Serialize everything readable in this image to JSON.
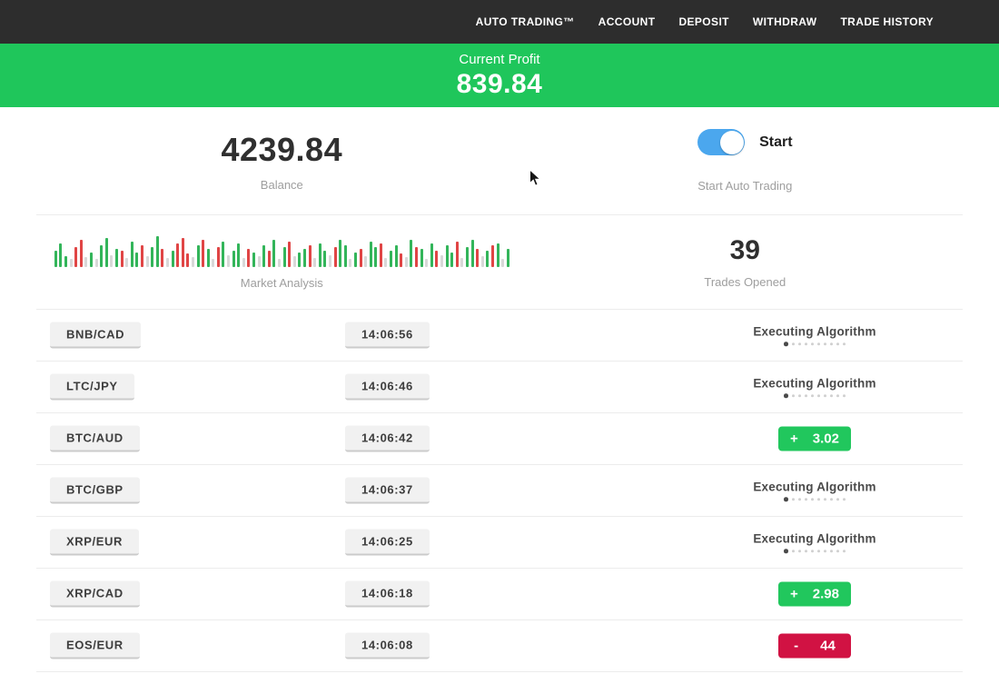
{
  "nav": {
    "items": [
      "AUTO TRADING™",
      "ACCOUNT",
      "DEPOSIT",
      "WITHDRAW",
      "TRADE HISTORY"
    ]
  },
  "profit_banner": {
    "label": "Current Profit",
    "value": "839.84"
  },
  "stats": {
    "balance": {
      "value": "4239.84",
      "label": "Balance"
    },
    "auto_trading": {
      "toggle_label": "Start",
      "caption": "Start Auto Trading",
      "toggle_state": "on"
    },
    "market_analysis": {
      "label": "Market Analysis"
    },
    "trades_opened": {
      "value": "39",
      "label": "Trades Opened"
    }
  },
  "market_analysis_bars": {
    "color_map": {
      "g": "#33b55a",
      "r": "#e04545",
      "s": "#d8d8d8"
    },
    "bars": [
      [
        18,
        "g"
      ],
      [
        26,
        "g"
      ],
      [
        12,
        "g"
      ],
      [
        9,
        "s"
      ],
      [
        22,
        "r"
      ],
      [
        30,
        "r"
      ],
      [
        11,
        "s"
      ],
      [
        16,
        "g"
      ],
      [
        9,
        "s"
      ],
      [
        24,
        "g"
      ],
      [
        32,
        "g"
      ],
      [
        13,
        "s"
      ],
      [
        20,
        "g"
      ],
      [
        18,
        "r"
      ],
      [
        10,
        "s"
      ],
      [
        28,
        "g"
      ],
      [
        16,
        "g"
      ],
      [
        24,
        "r"
      ],
      [
        12,
        "s"
      ],
      [
        22,
        "g"
      ],
      [
        34,
        "g"
      ],
      [
        20,
        "r"
      ],
      [
        10,
        "s"
      ],
      [
        18,
        "g"
      ],
      [
        26,
        "r"
      ],
      [
        32,
        "r"
      ],
      [
        15,
        "r"
      ],
      [
        11,
        "s"
      ],
      [
        24,
        "g"
      ],
      [
        30,
        "r"
      ],
      [
        20,
        "g"
      ],
      [
        9,
        "s"
      ],
      [
        22,
        "r"
      ],
      [
        28,
        "g"
      ],
      [
        13,
        "s"
      ],
      [
        18,
        "g"
      ],
      [
        26,
        "g"
      ],
      [
        10,
        "s"
      ],
      [
        20,
        "r"
      ],
      [
        16,
        "g"
      ],
      [
        12,
        "s"
      ],
      [
        24,
        "g"
      ],
      [
        18,
        "r"
      ],
      [
        30,
        "g"
      ],
      [
        9,
        "s"
      ],
      [
        22,
        "g"
      ],
      [
        28,
        "r"
      ],
      [
        12,
        "s"
      ],
      [
        16,
        "g"
      ],
      [
        20,
        "g"
      ],
      [
        24,
        "r"
      ],
      [
        10,
        "s"
      ],
      [
        26,
        "g"
      ],
      [
        18,
        "g"
      ],
      [
        13,
        "s"
      ],
      [
        22,
        "r"
      ],
      [
        30,
        "g"
      ],
      [
        24,
        "g"
      ],
      [
        9,
        "s"
      ],
      [
        16,
        "g"
      ],
      [
        20,
        "r"
      ],
      [
        12,
        "s"
      ],
      [
        28,
        "g"
      ],
      [
        22,
        "g"
      ],
      [
        26,
        "r"
      ],
      [
        10,
        "s"
      ],
      [
        18,
        "g"
      ],
      [
        24,
        "g"
      ],
      [
        15,
        "r"
      ],
      [
        11,
        "s"
      ],
      [
        30,
        "g"
      ],
      [
        22,
        "r"
      ],
      [
        20,
        "g"
      ],
      [
        9,
        "s"
      ],
      [
        26,
        "g"
      ],
      [
        18,
        "r"
      ],
      [
        13,
        "s"
      ],
      [
        24,
        "g"
      ],
      [
        16,
        "g"
      ],
      [
        28,
        "r"
      ],
      [
        10,
        "s"
      ],
      [
        22,
        "g"
      ],
      [
        30,
        "g"
      ],
      [
        20,
        "r"
      ],
      [
        12,
        "s"
      ],
      [
        18,
        "g"
      ],
      [
        24,
        "r"
      ],
      [
        26,
        "g"
      ],
      [
        9,
        "s"
      ],
      [
        20,
        "g"
      ]
    ]
  },
  "trades": {
    "executing_label": "Executing Algorithm",
    "progress_dots": {
      "total": 10,
      "active_index": 0
    },
    "rows": [
      {
        "pair": "BNB/CAD",
        "time": "14:06:56",
        "status": "executing"
      },
      {
        "pair": "LTC/JPY",
        "time": "14:06:46",
        "status": "executing"
      },
      {
        "pair": "BTC/AUD",
        "time": "14:06:42",
        "status": "profit",
        "sign": "+",
        "value": "3.02"
      },
      {
        "pair": "BTC/GBP",
        "time": "14:06:37",
        "status": "executing"
      },
      {
        "pair": "XRP/EUR",
        "time": "14:06:25",
        "status": "executing"
      },
      {
        "pair": "XRP/CAD",
        "time": "14:06:18",
        "status": "profit",
        "sign": "+",
        "value": "2.98"
      },
      {
        "pair": "EOS/EUR",
        "time": "14:06:08",
        "status": "loss",
        "sign": "-",
        "value": "44"
      }
    ]
  },
  "colors": {
    "nav_bg": "#2d2d2d",
    "banner_green": "#1fc65b",
    "profit_green": "#21c75d",
    "loss_red": "#d11243",
    "toggle_blue": "#4ba7ee"
  }
}
